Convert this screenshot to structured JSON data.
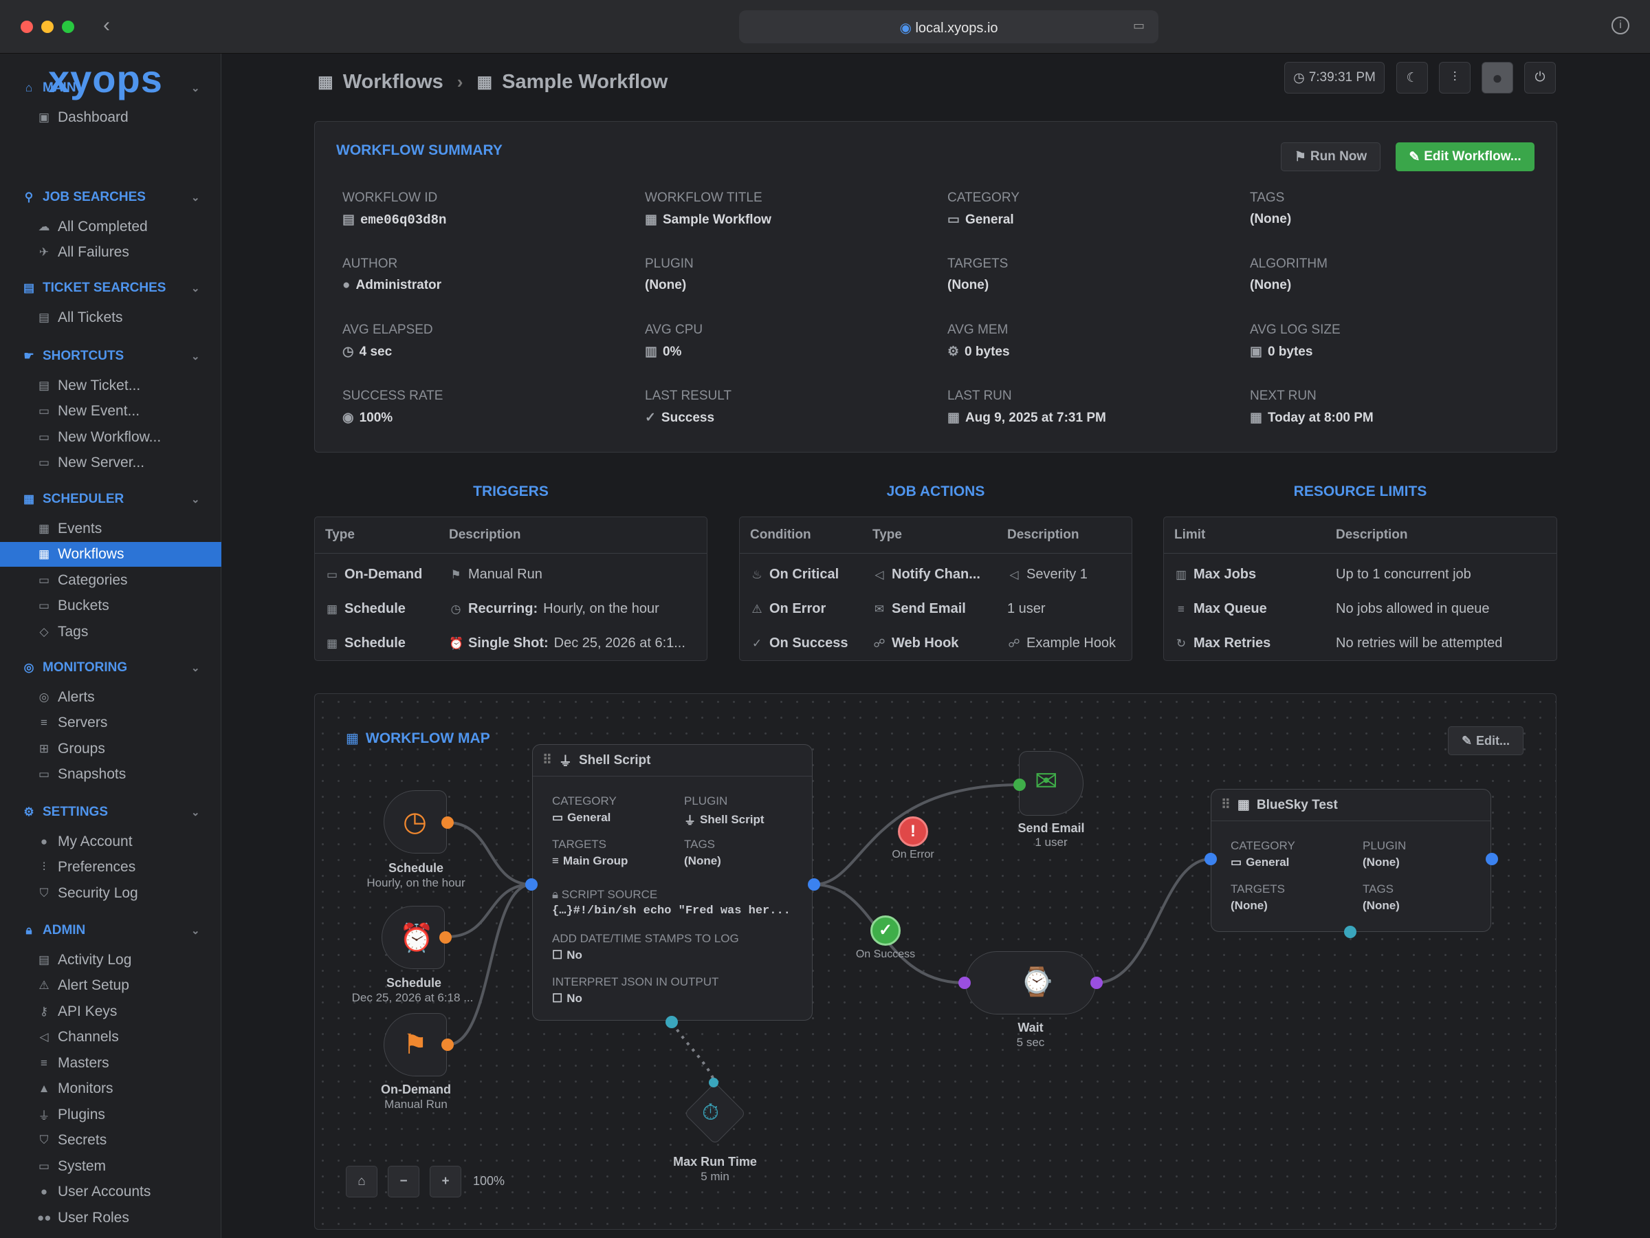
{
  "window": {
    "url": "local.xyops.io"
  },
  "app": {
    "logo": "xyops"
  },
  "sidebar": {
    "sections": [
      {
        "label": "MAIN",
        "items": [
          "Dashboard"
        ]
      },
      {
        "label": "JOB SEARCHES",
        "items": [
          "All Completed",
          "All Failures"
        ]
      },
      {
        "label": "TICKET SEARCHES",
        "items": [
          "All Tickets"
        ]
      },
      {
        "label": "SHORTCUTS",
        "items": [
          "New Ticket...",
          "New Event...",
          "New Workflow...",
          "New Server..."
        ]
      },
      {
        "label": "SCHEDULER",
        "items": [
          "Events",
          "Workflows",
          "Categories",
          "Buckets",
          "Tags"
        ]
      },
      {
        "label": "MONITORING",
        "items": [
          "Alerts",
          "Servers",
          "Groups",
          "Snapshots"
        ]
      },
      {
        "label": "SETTINGS",
        "items": [
          "My Account",
          "Preferences",
          "Security Log"
        ]
      },
      {
        "label": "ADMIN",
        "items": [
          "Activity Log",
          "Alert Setup",
          "API Keys",
          "Channels",
          "Masters",
          "Monitors",
          "Plugins",
          "Secrets",
          "System",
          "User Accounts",
          "User Roles"
        ]
      }
    ],
    "active": "Workflows"
  },
  "header": {
    "crumb1": "Workflows",
    "separator": "›",
    "crumb2": "Sample Workflow",
    "clock": "7:39:31 PM"
  },
  "summary": {
    "title": "WORKFLOW SUMMARY",
    "run_now": "Run Now",
    "edit": "Edit Workflow...",
    "fields": [
      {
        "label": "WORKFLOW ID",
        "value": "eme06q03d8n",
        "icon": "id-icon"
      },
      {
        "label": "WORKFLOW TITLE",
        "value": "Sample Workflow",
        "icon": "workflow-icon"
      },
      {
        "label": "CATEGORY",
        "value": "General",
        "icon": "folder-icon"
      },
      {
        "label": "TAGS",
        "value": "(None)",
        "icon": ""
      },
      {
        "label": "AUTHOR",
        "value": "Administrator",
        "icon": "user-icon"
      },
      {
        "label": "PLUGIN",
        "value": "(None)",
        "icon": ""
      },
      {
        "label": "TARGETS",
        "value": "(None)",
        "icon": ""
      },
      {
        "label": "ALGORITHM",
        "value": "(None)",
        "icon": ""
      },
      {
        "label": "AVG ELAPSED",
        "value": "4 sec",
        "icon": "clock-icon"
      },
      {
        "label": "AVG CPU",
        "value": "0%",
        "icon": "cpu-icon"
      },
      {
        "label": "AVG MEM",
        "value": "0 bytes",
        "icon": "memory-icon"
      },
      {
        "label": "AVG LOG SIZE",
        "value": "0 bytes",
        "icon": "disk-icon"
      },
      {
        "label": "SUCCESS RATE",
        "value": "100%",
        "icon": "gauge-icon"
      },
      {
        "label": "LAST RESULT",
        "value": "Success",
        "icon": "check-circle-icon"
      },
      {
        "label": "LAST RUN",
        "value": "Aug 9, 2025 at 7:31 PM",
        "icon": "calendar-icon"
      },
      {
        "label": "NEXT RUN",
        "value": "Today at 8:00 PM",
        "icon": "calendar-icon"
      }
    ]
  },
  "triggers": {
    "title": "TRIGGERS",
    "headers": [
      "Type",
      "Description"
    ],
    "rows": [
      {
        "type": "On-Demand",
        "desc_bold": "",
        "desc": "Manual Run"
      },
      {
        "type": "Schedule",
        "desc_bold": "Recurring:",
        "desc": "Hourly, on the hour"
      },
      {
        "type": "Schedule",
        "desc_bold": "Single Shot:",
        "desc": "Dec 25, 2026 at 6:1..."
      }
    ]
  },
  "actions": {
    "title": "JOB ACTIONS",
    "headers": [
      "Condition",
      "Type",
      "Description"
    ],
    "rows": [
      {
        "cond": "On Critical",
        "type": "Notify Chan...",
        "desc": "Severity 1"
      },
      {
        "cond": "On Error",
        "type": "Send Email",
        "desc": "1 user"
      },
      {
        "cond": "On Success",
        "type": "Web Hook",
        "desc": "Example Hook"
      }
    ]
  },
  "limits": {
    "title": "RESOURCE LIMITS",
    "headers": [
      "Limit",
      "Description"
    ],
    "rows": [
      {
        "limit": "Max Jobs",
        "desc": "Up to 1 concurrent job"
      },
      {
        "limit": "Max Queue",
        "desc": "No jobs allowed in queue"
      },
      {
        "limit": "Max Retries",
        "desc": "No retries will be attempted"
      }
    ]
  },
  "map": {
    "title": "WORKFLOW MAP",
    "edit": "Edit...",
    "zoom": "100%",
    "triggers": [
      {
        "title": "Schedule",
        "sub": "Hourly, on the hour"
      },
      {
        "title": "Schedule",
        "sub": "Dec 25, 2026 at 6:18 ..."
      },
      {
        "title": "On-Demand",
        "sub": "Manual Run"
      }
    ],
    "shell": {
      "title": "Shell Script",
      "cat_l": "CATEGORY",
      "cat_v": "General",
      "plug_l": "PLUGIN",
      "plug_v": "Shell Script",
      "tgt_l": "TARGETS",
      "tgt_v": "Main Group",
      "tags_l": "TAGS",
      "tags_v": "(None)",
      "src_l": "SCRIPT SOURCE",
      "src_v": "{…}#!/bin/sh echo \"Fred was her...",
      "ts_l": "ADD DATE/TIME STAMPS TO LOG",
      "ts_v": "No",
      "json_l": "INTERPRET JSON IN OUTPUT",
      "json_v": "No"
    },
    "on_error": "On Error",
    "on_success": "On Success",
    "email": {
      "title": "Send Email",
      "sub": "1 user"
    },
    "wait": {
      "title": "Wait",
      "sub": "5 sec"
    },
    "maxrun": {
      "title": "Max Run Time",
      "sub": "5 min"
    },
    "bluesky": {
      "title": "BlueSky Test",
      "cat_l": "CATEGORY",
      "cat_v": "General",
      "plug_l": "PLUGIN",
      "plug_v": "(None)",
      "tgt_l": "TARGETS",
      "tgt_v": "(None)",
      "tags_l": "TAGS",
      "tags_v": "(None)"
    }
  },
  "colors": {
    "accent": "#4f95ee",
    "green": "#3fae49",
    "orange": "#f0882f",
    "purple": "#9a4fe0",
    "teal": "#3aa6bd",
    "red": "#e04848"
  }
}
